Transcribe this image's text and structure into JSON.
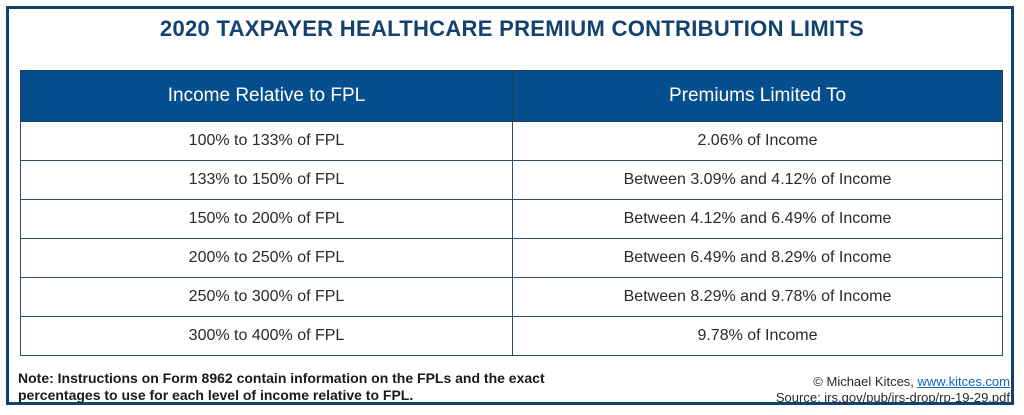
{
  "title": "2020 TAXPAYER HEALTHCARE PREMIUM CONTRIBUTION LIMITS",
  "table": {
    "headers": [
      "Income Relative to FPL",
      "Premiums Limited To"
    ],
    "rows": [
      [
        "100% to 133% of FPL",
        "2.06% of Income"
      ],
      [
        "133% to 150% of FPL",
        "Between 3.09% and 4.12% of Income"
      ],
      [
        "150% to 200% of FPL",
        "Between 4.12% and 6.49% of Income"
      ],
      [
        "200% to 250% of FPL",
        "Between 6.49% and 8.29% of Income"
      ],
      [
        "250% to 300% of FPL",
        "Between 8.29% and 9.78% of Income"
      ],
      [
        "300% to 400% of FPL",
        "9.78% of Income"
      ]
    ]
  },
  "note": "Note: Instructions on Form 8962 contain information on the FPLs and the exact percentages to use for each level of income relative to FPL.",
  "credits": {
    "copyright_prefix": "© Michael Kitces, ",
    "link_text": "www.kitces.com",
    "source": "Source: irs.gov/pub/irs-drop/rp-19-29.pdf"
  },
  "colors": {
    "header_bg": "#064f8f",
    "title_color": "#13426f",
    "frame_color": "#13426f",
    "link_color": "#1565c0"
  }
}
